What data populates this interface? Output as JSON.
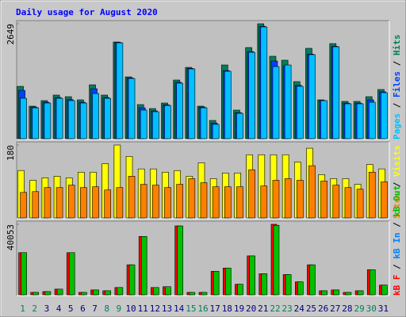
{
  "chart_data": [
    {
      "type": "bar",
      "title": "Daily usage for August 2020",
      "legend_separator": "/",
      "ylim": [
        0,
        2649
      ],
      "yticks": [
        2649
      ],
      "series": [
        {
          "name": "Pages",
          "color": "#00c0ff",
          "values": [
            931,
            712,
            822,
            931,
            877,
            822,
            1041,
            931,
            2210,
            1388,
            658,
            621,
            767,
            1279,
            1608,
            712,
            329,
            1553,
            585,
            1991,
            2576,
            1662,
            1699,
            1206,
            1937,
            877,
            2119,
            804,
            804,
            840,
            1060
          ]
        },
        {
          "name": "Files",
          "color": "#0040ff",
          "values": [
            1114,
            730,
            840,
            950,
            900,
            840,
            1151,
            950,
            2220,
            1400,
            712,
            640,
            780,
            1300,
            1620,
            730,
            360,
            1570,
            600,
            2010,
            2590,
            1790,
            1681,
            1230,
            1950,
            880,
            2130,
            820,
            820,
            895,
            1080
          ]
        },
        {
          "name": "Hits",
          "color": "#00805c",
          "values": [
            1206,
            749,
            877,
            1005,
            968,
            895,
            1242,
            1005,
            2229,
            1425,
            786,
            694,
            822,
            1352,
            1644,
            749,
            420,
            1699,
            658,
            2101,
            2649,
            1900,
            1809,
            1315,
            2083,
            895,
            2192,
            859,
            859,
            968,
            1133
          ]
        }
      ]
    },
    {
      "type": "bar",
      "legend_separator": "/",
      "ylim": [
        0,
        180
      ],
      "yticks": [
        180
      ],
      "series": [
        {
          "name": "Sites",
          "color": "#ff8000",
          "values": [
            63,
            65,
            75,
            75,
            81,
            75,
            77,
            69,
            75,
            103,
            83,
            81,
            75,
            83,
            97,
            87,
            77,
            77,
            77,
            119,
            79,
            93,
            97,
            93,
            129,
            91,
            81,
            75,
            71,
            113,
            89
          ]
        },
        {
          "name": "Visits",
          "color": "#ffff00",
          "values": [
            117,
            93,
            99,
            103,
            99,
            113,
            113,
            134,
            180,
            152,
            121,
            121,
            113,
            117,
            103,
            136,
            97,
            111,
            111,
            156,
            156,
            156,
            156,
            138,
            172,
            107,
            97,
            97,
            83,
            132,
            121
          ]
        }
      ]
    },
    {
      "type": "bar",
      "legend_separator": "/",
      "ylim": [
        0,
        40053
      ],
      "yticks": [
        40053
      ],
      "categories": [
        "1",
        "2",
        "3",
        "4",
        "5",
        "6",
        "7",
        "8",
        "9",
        "10",
        "11",
        "12",
        "13",
        "14",
        "15",
        "16",
        "17",
        "18",
        "19",
        "20",
        "21",
        "22",
        "23",
        "24",
        "25",
        "26",
        "27",
        "28",
        "29",
        "30",
        "31"
      ],
      "label_colors": [
        "#00805c",
        "#00805c",
        "#000080",
        "#000080",
        "#000080",
        "#000080",
        "#000080",
        "#00805c",
        "#00805c",
        "#000080",
        "#000080",
        "#000080",
        "#000080",
        "#000080",
        "#00805c",
        "#00805c",
        "#000080",
        "#000080",
        "#000080",
        "#000080",
        "#000080",
        "#00805c",
        "#00805c",
        "#000080",
        "#000080",
        "#000080",
        "#000080",
        "#000080",
        "#00805c",
        "#00805c",
        "#000080"
      ],
      "series": [
        {
          "name": "kB F",
          "color": "#ff0000",
          "values": [
            23940,
            1381,
            1842,
            3223,
            23940,
            1381,
            2762,
            2302,
            4143,
            17034,
            33147,
            4143,
            4604,
            39133,
            1381,
            1381,
            13351,
            15193,
            5985,
            22098,
            11970,
            40053,
            11509,
            7366,
            17034,
            2302,
            2762,
            1381,
            2302,
            14272,
            5525
          ]
        },
        {
          "name": "kB In",
          "color": "#0080ff",
          "values": [
            0,
            0,
            0,
            0,
            0,
            0,
            0,
            0,
            0,
            0,
            0,
            0,
            0,
            0,
            0,
            0,
            0,
            0,
            0,
            0,
            0,
            0,
            0,
            0,
            0,
            0,
            0,
            0,
            0,
            0,
            0
          ]
        },
        {
          "name": "kB Out",
          "color": "#00c000",
          "values": [
            23940,
            1381,
            1842,
            3223,
            23940,
            1381,
            2762,
            2302,
            4143,
            17034,
            33147,
            4143,
            4604,
            39133,
            1381,
            1381,
            13351,
            15193,
            5985,
            22098,
            11970,
            39500,
            11509,
            7366,
            17034,
            2302,
            2762,
            1381,
            2302,
            14272,
            5525
          ]
        }
      ]
    }
  ]
}
